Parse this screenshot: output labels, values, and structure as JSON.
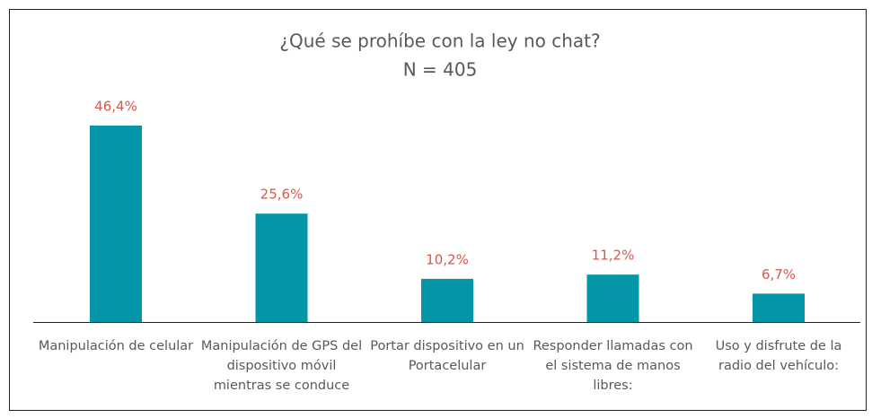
{
  "chart_data": {
    "type": "bar",
    "title": "¿Qué se prohíbe con la ley no chat?",
    "subtitle": "N = 405",
    "categories": [
      "Manipulación de celular",
      "Manipulación de GPS del dispositivo móvil mientras se conduce",
      "Portar dispositivo en un Portacelular",
      "Responder llamadas con el sistema de manos libres:",
      "Uso y disfrute de la radio del vehículo:"
    ],
    "values": [
      46.4,
      25.6,
      10.2,
      11.2,
      6.7
    ],
    "value_labels": [
      "46,4%",
      "25,6%",
      "10,2%",
      "11,2%",
      "6,7%"
    ],
    "color": "#0396a6",
    "label_color": "#d9574b"
  }
}
